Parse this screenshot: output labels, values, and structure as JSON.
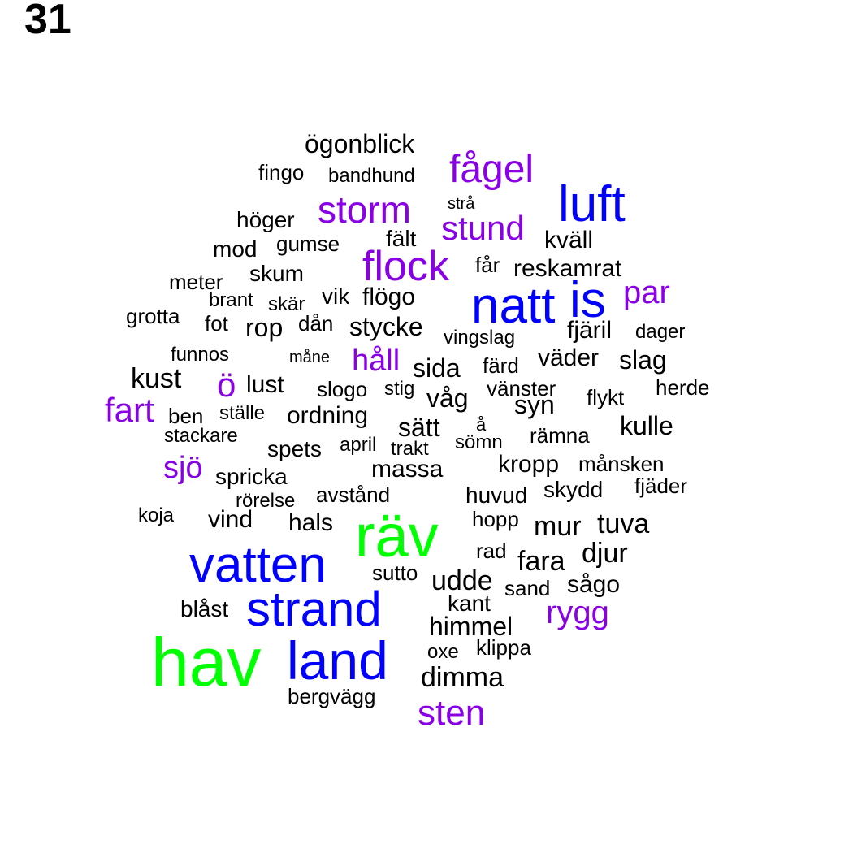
{
  "page_number": "31",
  "colors": {
    "level_1": "#00ff00",
    "level_2": "#0000ff",
    "level_3": "#8a00e6",
    "level_4": "#000000"
  },
  "words": [
    {
      "text": "hav",
      "level": 1
    },
    {
      "text": "räv",
      "level": 1
    },
    {
      "text": "vatten",
      "level": 2
    },
    {
      "text": "strand",
      "level": 2
    },
    {
      "text": "land",
      "level": 2
    },
    {
      "text": "natt",
      "level": 2
    },
    {
      "text": "is",
      "level": 2
    },
    {
      "text": "luft",
      "level": 2
    },
    {
      "text": "fågel",
      "level": 3
    },
    {
      "text": "storm",
      "level": 3
    },
    {
      "text": "stund",
      "level": 3
    },
    {
      "text": "flock",
      "level": 3
    },
    {
      "text": "par",
      "level": 3
    },
    {
      "text": "håll",
      "level": 3
    },
    {
      "text": "ö",
      "level": 3
    },
    {
      "text": "fart",
      "level": 3
    },
    {
      "text": "sjö",
      "level": 3
    },
    {
      "text": "rygg",
      "level": 3
    },
    {
      "text": "sten",
      "level": 3
    },
    {
      "text": "ögonblick",
      "level": 4
    },
    {
      "text": "fingo",
      "level": 4
    },
    {
      "text": "bandhund",
      "level": 4
    },
    {
      "text": "strå",
      "level": 4
    },
    {
      "text": "höger",
      "level": 4
    },
    {
      "text": "fält",
      "level": 4
    },
    {
      "text": "kväll",
      "level": 4
    },
    {
      "text": "mod",
      "level": 4
    },
    {
      "text": "gumse",
      "level": 4
    },
    {
      "text": "får",
      "level": 4
    },
    {
      "text": "reskamrat",
      "level": 4
    },
    {
      "text": "skum",
      "level": 4
    },
    {
      "text": "meter",
      "level": 4
    },
    {
      "text": "brant",
      "level": 4
    },
    {
      "text": "skär",
      "level": 4
    },
    {
      "text": "vik",
      "level": 4
    },
    {
      "text": "flögo",
      "level": 4
    },
    {
      "text": "grotta",
      "level": 4
    },
    {
      "text": "fot",
      "level": 4
    },
    {
      "text": "rop",
      "level": 4
    },
    {
      "text": "dån",
      "level": 4
    },
    {
      "text": "stycke",
      "level": 4
    },
    {
      "text": "vingslag",
      "level": 4
    },
    {
      "text": "fjäril",
      "level": 4
    },
    {
      "text": "dager",
      "level": 4
    },
    {
      "text": "funnos",
      "level": 4
    },
    {
      "text": "måne",
      "level": 4
    },
    {
      "text": "sida",
      "level": 4
    },
    {
      "text": "färd",
      "level": 4
    },
    {
      "text": "väder",
      "level": 4
    },
    {
      "text": "slag",
      "level": 4
    },
    {
      "text": "kust",
      "level": 4
    },
    {
      "text": "lust",
      "level": 4
    },
    {
      "text": "slogo",
      "level": 4
    },
    {
      "text": "stig",
      "level": 4
    },
    {
      "text": "vänster",
      "level": 4
    },
    {
      "text": "herde",
      "level": 4
    },
    {
      "text": "våg",
      "level": 4
    },
    {
      "text": "syn",
      "level": 4
    },
    {
      "text": "flykt",
      "level": 4
    },
    {
      "text": "ben",
      "level": 4
    },
    {
      "text": "ställe",
      "level": 4
    },
    {
      "text": "ordning",
      "level": 4
    },
    {
      "text": "sätt",
      "level": 4
    },
    {
      "text": "å",
      "level": 4
    },
    {
      "text": "kulle",
      "level": 4
    },
    {
      "text": "stackare",
      "level": 4
    },
    {
      "text": "april",
      "level": 4
    },
    {
      "text": "trakt",
      "level": 4
    },
    {
      "text": "sömn",
      "level": 4
    },
    {
      "text": "rämna",
      "level": 4
    },
    {
      "text": "spets",
      "level": 4
    },
    {
      "text": "massa",
      "level": 4
    },
    {
      "text": "kropp",
      "level": 4
    },
    {
      "text": "månsken",
      "level": 4
    },
    {
      "text": "spricka",
      "level": 4
    },
    {
      "text": "fjäder",
      "level": 4
    },
    {
      "text": "avstånd",
      "level": 4
    },
    {
      "text": "huvud",
      "level": 4
    },
    {
      "text": "skydd",
      "level": 4
    },
    {
      "text": "rörelse",
      "level": 4
    },
    {
      "text": "koja",
      "level": 4
    },
    {
      "text": "vind",
      "level": 4
    },
    {
      "text": "hals",
      "level": 4
    },
    {
      "text": "hopp",
      "level": 4
    },
    {
      "text": "mur",
      "level": 4
    },
    {
      "text": "tuva",
      "level": 4
    },
    {
      "text": "rad",
      "level": 4
    },
    {
      "text": "djur",
      "level": 4
    },
    {
      "text": "fara",
      "level": 4
    },
    {
      "text": "sutto",
      "level": 4
    },
    {
      "text": "udde",
      "level": 4
    },
    {
      "text": "sand",
      "level": 4
    },
    {
      "text": "sågo",
      "level": 4
    },
    {
      "text": "blåst",
      "level": 4
    },
    {
      "text": "kant",
      "level": 4
    },
    {
      "text": "himmel",
      "level": 4
    },
    {
      "text": "oxe",
      "level": 4
    },
    {
      "text": "klippa",
      "level": 4
    },
    {
      "text": "dimma",
      "level": 4
    },
    {
      "text": "bergvägg",
      "level": 4
    }
  ]
}
